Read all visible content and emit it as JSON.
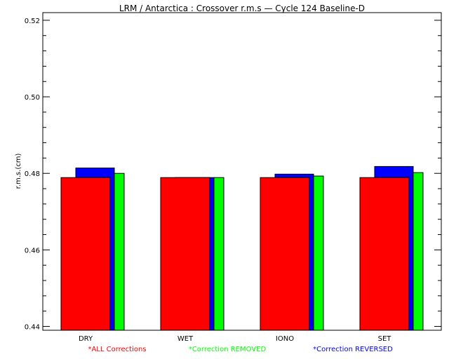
{
  "chart_data": {
    "type": "bar",
    "title": "LRM / Antarctica : Crossover r.m.s — Cycle 124 Baseline-D",
    "xlabel": "",
    "ylabel": "r.m.s.(cm)",
    "ylim": [
      0.439,
      0.522
    ],
    "yticks": [
      "0.44",
      "0.46",
      "0.48",
      "0.50",
      "0.52"
    ],
    "categories": [
      "DRY",
      "WET",
      "IONO",
      "SET"
    ],
    "series": [
      {
        "name": "*ALL Corrections",
        "color": "#ff0000",
        "values": [
          0.4789,
          0.4789,
          0.4789,
          0.4789
        ]
      },
      {
        "name": "*Correction REMOVED",
        "color": "#00ff00",
        "values": [
          0.48,
          0.4789,
          0.4793,
          0.4802
        ]
      },
      {
        "name": "*Correction REVERSED",
        "color": "#0000ff",
        "values": [
          0.4814,
          0.4789,
          0.4798,
          0.4818
        ]
      }
    ],
    "legend_placement": "bottom",
    "grid": false
  }
}
